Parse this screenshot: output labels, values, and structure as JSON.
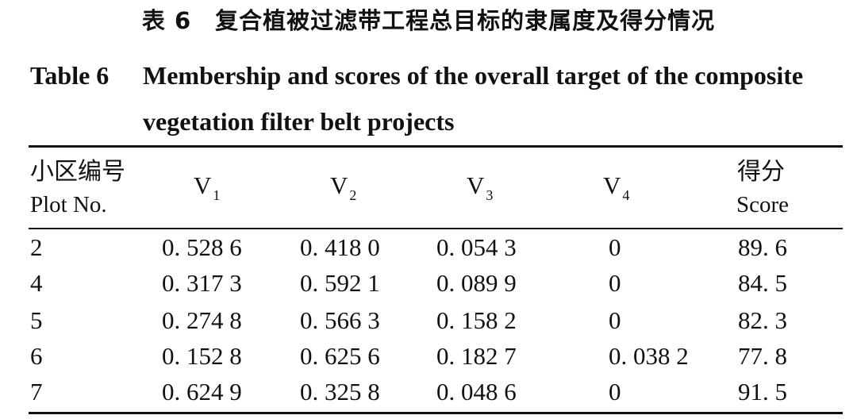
{
  "title": {
    "cn_number": "表 6",
    "cn_text": "复合植被过滤带工程总目标的隶属度及得分情况",
    "en_label": "Table 6",
    "en_text": "Membership and scores of the overall target of the composite vegetation filter belt projects"
  },
  "table": {
    "headers": {
      "plot_cn": "小区编号",
      "plot_en": "Plot No.",
      "v1": "V",
      "v1_sub": "1",
      "v2": "V",
      "v2_sub": "2",
      "v3": "V",
      "v3_sub": "3",
      "v4": "V",
      "v4_sub": "4",
      "score_cn": "得分",
      "score_en": "Score"
    },
    "rows": [
      {
        "plot": "2",
        "v1": "0. 528 6",
        "v2": "0. 418 0",
        "v3": "0. 054 3",
        "v4": "0",
        "score": "89. 6"
      },
      {
        "plot": "4",
        "v1": "0. 317 3",
        "v2": "0. 592 1",
        "v3": "0. 089 9",
        "v4": "0",
        "score": "84. 5"
      },
      {
        "plot": "5",
        "v1": "0. 274 8",
        "v2": "0. 566 3",
        "v3": "0. 158 2",
        "v4": "0",
        "score": "82. 3"
      },
      {
        "plot": "6",
        "v1": "0. 152 8",
        "v2": "0. 625 6",
        "v3": "0. 182 7",
        "v4": "0. 038 2",
        "score": "77. 8"
      },
      {
        "plot": "7",
        "v1": "0. 624 9",
        "v2": "0. 325 8",
        "v3": "0. 048 6",
        "v4": "0",
        "score": "91. 5"
      }
    ]
  }
}
